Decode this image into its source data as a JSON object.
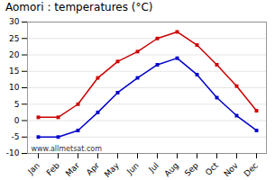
{
  "chart_data": {
    "type": "line",
    "title": "Aomori : temperatures (°C)",
    "categories": [
      "Jan",
      "Feb",
      "Mar",
      "Apr",
      "May",
      "Jun",
      "Jul",
      "Aug",
      "Sep",
      "Oct",
      "Nov",
      "Dec"
    ],
    "series": [
      {
        "color": "#cc0000",
        "marker": "square",
        "line_style": "solid",
        "values": [
          1,
          1,
          5,
          13,
          18,
          21,
          25,
          27,
          23,
          17,
          10.5,
          3
        ]
      },
      {
        "color": "#0000cc",
        "marker": "square",
        "line_style": "solid",
        "values": [
          -5,
          -5,
          -3,
          2.5,
          8.5,
          13,
          17,
          19,
          14,
          7,
          1.5,
          -3
        ]
      }
    ],
    "ylim": [
      -10,
      30
    ],
    "yticks": [
      -10,
      -5,
      0,
      5,
      10,
      15,
      20,
      25,
      30
    ],
    "grid": "y",
    "annotations": [
      "www.allmetsat.com"
    ]
  }
}
